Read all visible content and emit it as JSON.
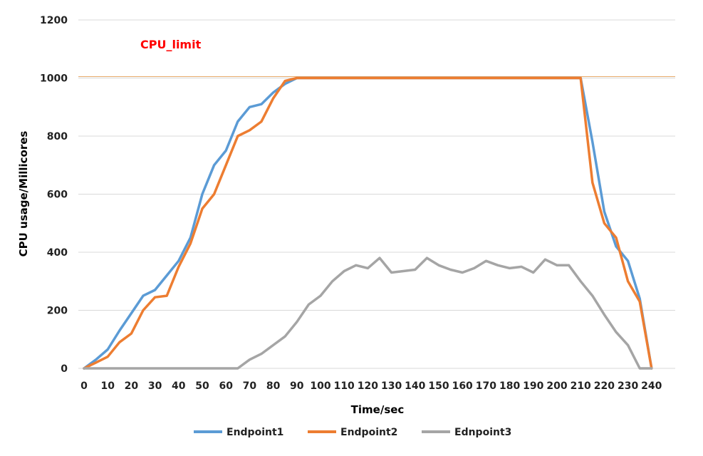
{
  "chart_data": {
    "type": "line",
    "title": "",
    "xlabel": "Time/sec",
    "ylabel": "CPU usage/Millicores",
    "xlim": [
      0,
      250
    ],
    "ylim": [
      0,
      1200
    ],
    "yticks": [
      0,
      200,
      400,
      600,
      800,
      1000,
      1200
    ],
    "xticks": [
      "0",
      "10",
      "20",
      "30",
      "40",
      "50",
      "60",
      "70",
      "80",
      "90",
      "100",
      "110",
      "120",
      "130",
      "140",
      "150",
      "160",
      "170",
      "180",
      "190",
      "200",
      "210",
      "220",
      "230",
      "240"
    ],
    "grid": true,
    "legend_position": "bottom",
    "reference_line": {
      "label": "CPU_limit",
      "value": 1000,
      "color": "#e6a96b",
      "label_color": "#ff0000"
    },
    "series": [
      {
        "name": "Endpoint1",
        "color": "#5b9bd5",
        "x": [
          0,
          5,
          10,
          15,
          20,
          25,
          30,
          35,
          40,
          45,
          50,
          55,
          60,
          65,
          70,
          75,
          80,
          85,
          90,
          95,
          100,
          110,
          120,
          130,
          140,
          150,
          160,
          170,
          180,
          190,
          200,
          205,
          210,
          215,
          220,
          225,
          230,
          235,
          240
        ],
        "y": [
          0,
          30,
          65,
          130,
          190,
          250,
          270,
          320,
          370,
          450,
          600,
          700,
          750,
          850,
          900,
          910,
          950,
          980,
          1000,
          1000,
          1000,
          1000,
          1000,
          1000,
          1000,
          1000,
          1000,
          1000,
          1000,
          1000,
          1000,
          1000,
          1000,
          780,
          540,
          420,
          370,
          240,
          0
        ]
      },
      {
        "name": "Endpoint2",
        "color": "#ed7d31",
        "x": [
          0,
          5,
          10,
          15,
          20,
          25,
          30,
          35,
          40,
          45,
          50,
          55,
          60,
          65,
          70,
          75,
          80,
          85,
          90,
          95,
          100,
          110,
          120,
          130,
          140,
          150,
          160,
          170,
          180,
          190,
          200,
          205,
          210,
          215,
          220,
          225,
          230,
          235,
          240
        ],
        "y": [
          0,
          20,
          40,
          90,
          120,
          200,
          245,
          250,
          350,
          430,
          550,
          600,
          700,
          800,
          820,
          850,
          930,
          990,
          1000,
          1000,
          1000,
          1000,
          1000,
          1000,
          1000,
          1000,
          1000,
          1000,
          1000,
          1000,
          1000,
          1000,
          1000,
          640,
          500,
          450,
          300,
          230,
          0
        ]
      },
      {
        "name": "Ednpoint3",
        "color": "#a5a5a5",
        "x": [
          0,
          5,
          10,
          15,
          20,
          25,
          30,
          35,
          40,
          45,
          50,
          55,
          60,
          65,
          70,
          75,
          80,
          85,
          90,
          95,
          100,
          105,
          110,
          115,
          120,
          125,
          130,
          135,
          140,
          145,
          150,
          155,
          160,
          165,
          170,
          175,
          180,
          185,
          190,
          195,
          200,
          205,
          210,
          215,
          220,
          225,
          230,
          235,
          240
        ],
        "y": [
          0,
          0,
          0,
          0,
          0,
          0,
          0,
          0,
          0,
          0,
          0,
          0,
          0,
          0,
          30,
          50,
          80,
          110,
          160,
          220,
          250,
          300,
          335,
          355,
          345,
          380,
          330,
          335,
          340,
          380,
          355,
          340,
          330,
          345,
          370,
          355,
          345,
          350,
          330,
          375,
          355,
          355,
          300,
          250,
          185,
          125,
          80,
          0,
          0
        ]
      }
    ]
  }
}
